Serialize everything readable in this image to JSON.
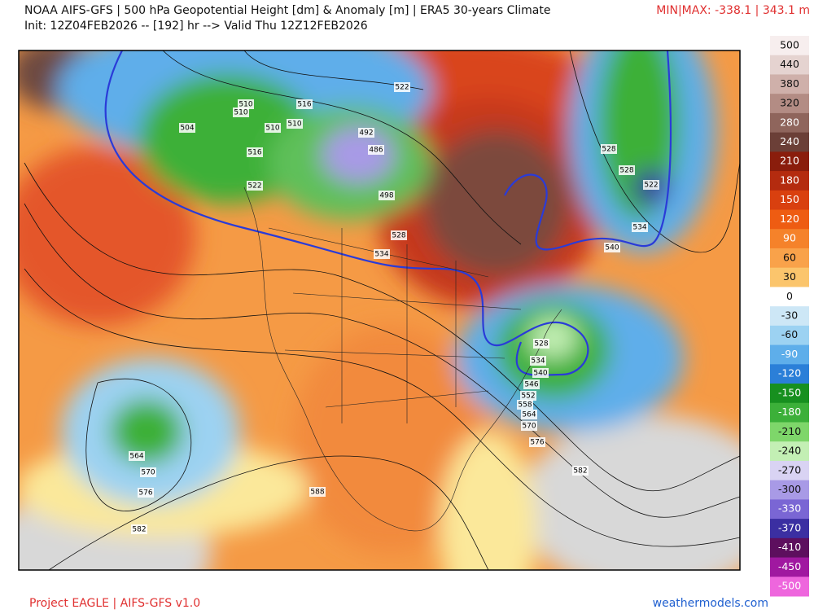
{
  "header": {
    "title": "NOAA AIFS-GFS | 500 hPa Geopotential Height [dm] & Anomaly [m] | ERA5 30-years Climate",
    "init": "Init: 12Z04FEB2026 -- [192] hr --> Valid Thu 12Z12FEB2026",
    "minmax": "MIN|MAX: -338.1 | 343.1 m"
  },
  "colorbar": {
    "labels": [
      500,
      440,
      380,
      320,
      280,
      240,
      210,
      180,
      150,
      120,
      90,
      60,
      30,
      0,
      -30,
      -60,
      -90,
      -120,
      -150,
      -180,
      -210,
      -240,
      -270,
      -300,
      -330,
      -370,
      -410,
      -450,
      -500
    ],
    "colors": [
      "#f7eeee",
      "#e5d3d0",
      "#cfb0aa",
      "#b38c84",
      "#8f655c",
      "#6b3f37",
      "#8a1d0c",
      "#b42b0f",
      "#d9400f",
      "#ee5c12",
      "#f5822a",
      "#f9a24a",
      "#fbc56c",
      "#ffffff",
      "#cde7f6",
      "#9cd2f2",
      "#5eaeea",
      "#2b7fd8",
      "#17901f",
      "#3cb039",
      "#7ed66a",
      "#c3efb4",
      "#d9d3f3",
      "#a89ae6",
      "#7a66d4",
      "#3b2fa2",
      "#5d0f5e",
      "#a018a0",
      "#ee66dd"
    ]
  },
  "contour_labels": [
    "510",
    "510",
    "504",
    "510",
    "510",
    "516",
    "516",
    "522",
    "492",
    "486",
    "498",
    "522",
    "528",
    "534",
    "528",
    "528",
    "522",
    "534",
    "540",
    "528",
    "534",
    "540",
    "546",
    "552",
    "558",
    "564",
    "570",
    "576",
    "582",
    "588",
    "564",
    "570",
    "576",
    "582"
  ],
  "footer": {
    "left": "Project EAGLE | AIFS-GFS v1.0",
    "right": "weathermodels.com"
  }
}
